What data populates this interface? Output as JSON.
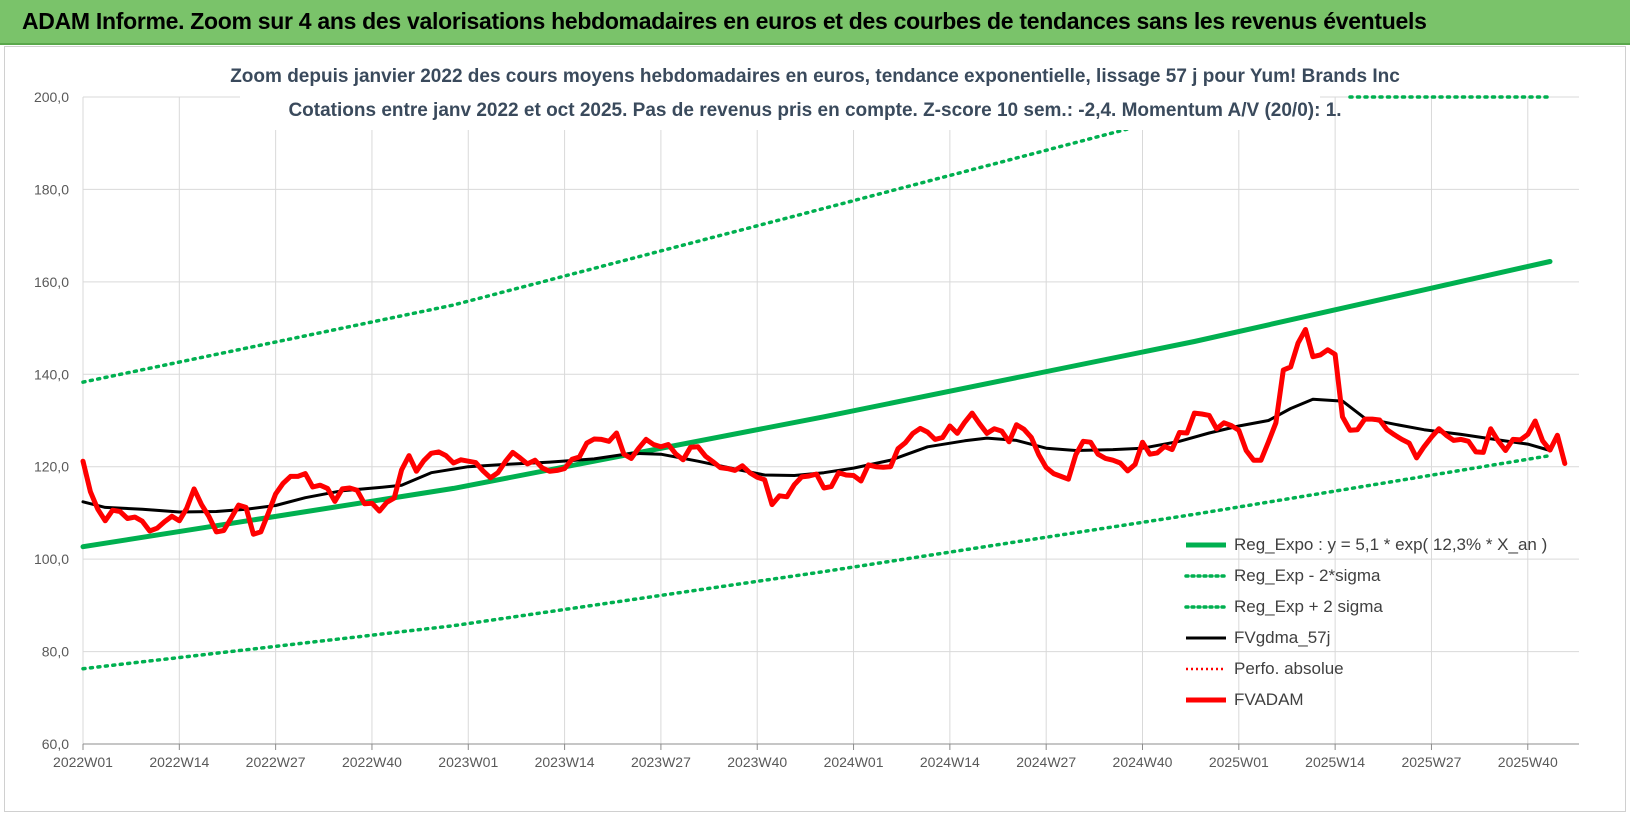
{
  "header": {
    "banner_title": "ADAM Informe. Zoom sur 4 ans des valorisations hebdomadaires en euros et des courbes de tendances sans les revenus éventuels"
  },
  "colors": {
    "banner_bg": "#7ac36a",
    "trend_green": "#00b050",
    "price_red": "#ff0000",
    "smooth_black": "#000000",
    "title_text": "#3a4a5c",
    "grid": "#d9d9d9"
  },
  "chart_data": {
    "type": "line",
    "title": "Zoom depuis janvier 2022 des cours moyens hebdomadaires en euros, tendance exponentielle, lissage 57 j pour Yum! Brands Inc",
    "subtitle": "Cotations entre janv 2022 et oct 2025. Pas de revenus pris en compte. Z-score 10 sem.: -2,4. Momentum A/V (20/0): 1.",
    "xlabel": "",
    "ylabel": "",
    "ylim": [
      60,
      200
    ],
    "yticks": [
      60,
      80,
      100,
      120,
      140,
      160,
      180,
      200
    ],
    "ytick_labels": [
      "60,0",
      "80,0",
      "100,0",
      "120,0",
      "140,0",
      "160,0",
      "180,0",
      "200,0"
    ],
    "x_week_range": [
      0,
      198
    ],
    "xticks": [
      {
        "week": 0,
        "label": "2022W01"
      },
      {
        "week": 13,
        "label": "2022W14"
      },
      {
        "week": 26,
        "label": "2022W27"
      },
      {
        "week": 39,
        "label": "2022W40"
      },
      {
        "week": 52,
        "label": "2023W01"
      },
      {
        "week": 65,
        "label": "2023W14"
      },
      {
        "week": 78,
        "label": "2023W27"
      },
      {
        "week": 91,
        "label": "2023W40"
      },
      {
        "week": 104,
        "label": "2024W01"
      },
      {
        "week": 117,
        "label": "2024W14"
      },
      {
        "week": 130,
        "label": "2024W27"
      },
      {
        "week": 143,
        "label": "2024W40"
      },
      {
        "week": 156,
        "label": "2025W01"
      },
      {
        "week": 169,
        "label": "2025W14"
      },
      {
        "week": 182,
        "label": "2025W27"
      },
      {
        "week": 195,
        "label": "2025W40"
      }
    ],
    "grid": true,
    "legend_position": "bottom-right",
    "series": [
      {
        "name": "Reg_Expo : y = 5,1 * exp( 12,3% * X_an )",
        "style": "solid-thick",
        "color": "#00b050",
        "points": [
          [
            0,
            102.7
          ],
          [
            50,
            115.3
          ],
          [
            100,
            130.8
          ],
          [
            150,
            147.1
          ],
          [
            198,
            164.4
          ]
        ]
      },
      {
        "name": "Reg_Exp - 2*sigma",
        "style": "dotted",
        "color": "#00b050",
        "points": [
          [
            0,
            76.3
          ],
          [
            50,
            85.6
          ],
          [
            100,
            97.3
          ],
          [
            150,
            109.7
          ],
          [
            198,
            122.4
          ]
        ]
      },
      {
        "name": "Reg_Exp + 2 sigma",
        "style": "dotted",
        "color": "#00b050",
        "points": [
          [
            0,
            138.3
          ],
          [
            50,
            155.0
          ],
          [
            100,
            175.9
          ],
          [
            142,
            193.5
          ]
        ],
        "cap_points": [
          [
            171,
            200
          ],
          [
            198,
            200
          ]
        ]
      },
      {
        "name": "FVgdma_57j",
        "style": "solid",
        "color": "#000000",
        "points": [
          [
            0,
            112.4
          ],
          [
            3,
            111.2
          ],
          [
            8,
            110.8
          ],
          [
            13,
            110.2
          ],
          [
            18,
            110.3
          ],
          [
            22,
            110.8
          ],
          [
            26,
            111.6
          ],
          [
            30,
            113.3
          ],
          [
            35,
            114.8
          ],
          [
            40,
            115.5
          ],
          [
            43,
            116.0
          ],
          [
            47,
            118.7
          ],
          [
            52,
            120.0
          ],
          [
            57,
            120.5
          ],
          [
            63,
            121.0
          ],
          [
            69,
            121.7
          ],
          [
            74,
            122.9
          ],
          [
            78,
            122.7
          ],
          [
            83,
            121.2
          ],
          [
            88,
            119.5
          ],
          [
            92,
            118.2
          ],
          [
            96,
            118.1
          ],
          [
            100,
            118.7
          ],
          [
            104,
            119.7
          ],
          [
            109,
            121.4
          ],
          [
            114,
            124.3
          ],
          [
            119,
            125.6
          ],
          [
            122,
            126.2
          ],
          [
            126,
            125.7
          ],
          [
            130,
            124.0
          ],
          [
            134,
            123.5
          ],
          [
            139,
            123.7
          ],
          [
            143,
            124.0
          ],
          [
            148,
            125.5
          ],
          [
            152,
            127.3
          ],
          [
            156,
            128.8
          ],
          [
            160,
            130.0
          ],
          [
            163,
            132.6
          ],
          [
            166,
            134.6
          ],
          [
            170,
            134.2
          ],
          [
            173,
            130.5
          ],
          [
            177,
            129.2
          ],
          [
            181,
            128.0
          ],
          [
            186,
            127.0
          ],
          [
            191,
            125.8
          ],
          [
            195,
            124.9
          ],
          [
            198,
            123.5
          ]
        ]
      },
      {
        "name": "Perfo. absolue",
        "style": "dotted",
        "color": "#ff0000",
        "points": []
      },
      {
        "name": "FVADAM",
        "style": "solid-thick",
        "color": "#ff0000",
        "points": [
          [
            0,
            121.2
          ],
          [
            1,
            114.6
          ],
          [
            2,
            110.8
          ],
          [
            3,
            108.3
          ],
          [
            4,
            110.6
          ],
          [
            5,
            110.3
          ],
          [
            6,
            108.8
          ],
          [
            7,
            109.1
          ],
          [
            8,
            108.2
          ],
          [
            9,
            106.1
          ],
          [
            10,
            106.7
          ],
          [
            11,
            108.1
          ],
          [
            12,
            109.3
          ],
          [
            13,
            108.3
          ],
          [
            14,
            111.0
          ],
          [
            15,
            115.2
          ],
          [
            16,
            111.8
          ],
          [
            17,
            109.2
          ],
          [
            18,
            105.9
          ],
          [
            19,
            106.2
          ],
          [
            20,
            108.9
          ],
          [
            21,
            111.7
          ],
          [
            22,
            111.2
          ],
          [
            23,
            105.4
          ],
          [
            24,
            105.9
          ],
          [
            25,
            109.9
          ],
          [
            26,
            114.1
          ],
          [
            27,
            116.4
          ],
          [
            28,
            117.9
          ],
          [
            29,
            117.9
          ],
          [
            30,
            118.5
          ],
          [
            31,
            115.6
          ],
          [
            32,
            116.0
          ],
          [
            33,
            115.3
          ],
          [
            34,
            112.5
          ],
          [
            35,
            115.2
          ],
          [
            36,
            115.4
          ],
          [
            37,
            114.9
          ],
          [
            38,
            112.0
          ],
          [
            39,
            112.1
          ],
          [
            40,
            110.4
          ],
          [
            41,
            112.3
          ],
          [
            42,
            113.2
          ],
          [
            43,
            119.3
          ],
          [
            44,
            122.4
          ],
          [
            45,
            119.0
          ],
          [
            46,
            121.3
          ],
          [
            47,
            122.9
          ],
          [
            48,
            123.2
          ],
          [
            49,
            122.4
          ],
          [
            50,
            120.8
          ],
          [
            51,
            121.5
          ],
          [
            52,
            121.2
          ],
          [
            53,
            120.9
          ],
          [
            54,
            119.1
          ],
          [
            55,
            117.6
          ],
          [
            56,
            118.7
          ],
          [
            57,
            121.1
          ],
          [
            58,
            123.1
          ],
          [
            59,
            121.9
          ],
          [
            60,
            120.6
          ],
          [
            61,
            121.4
          ],
          [
            62,
            119.7
          ],
          [
            63,
            119.0
          ],
          [
            64,
            119.2
          ],
          [
            65,
            119.6
          ],
          [
            66,
            121.6
          ],
          [
            67,
            122.1
          ],
          [
            68,
            125.1
          ],
          [
            69,
            126.0
          ],
          [
            70,
            125.9
          ],
          [
            71,
            125.5
          ],
          [
            72,
            127.3
          ],
          [
            73,
            122.7
          ],
          [
            74,
            121.8
          ],
          [
            75,
            124.0
          ],
          [
            76,
            125.9
          ],
          [
            77,
            124.8
          ],
          [
            78,
            124.3
          ],
          [
            79,
            124.8
          ],
          [
            80,
            122.8
          ],
          [
            81,
            121.5
          ],
          [
            82,
            124.2
          ],
          [
            83,
            124.3
          ],
          [
            84,
            122.3
          ],
          [
            85,
            121.1
          ],
          [
            86,
            119.8
          ],
          [
            87,
            119.6
          ],
          [
            88,
            119.2
          ],
          [
            89,
            120.2
          ],
          [
            90,
            118.7
          ],
          [
            91,
            117.7
          ],
          [
            92,
            117.2
          ],
          [
            93,
            111.8
          ],
          [
            94,
            113.7
          ],
          [
            95,
            113.5
          ],
          [
            96,
            116.1
          ],
          [
            97,
            117.8
          ],
          [
            98,
            118.0
          ],
          [
            99,
            118.4
          ],
          [
            100,
            115.4
          ],
          [
            101,
            115.7
          ],
          [
            102,
            118.7
          ],
          [
            103,
            118.2
          ],
          [
            104,
            118.1
          ],
          [
            105,
            116.9
          ],
          [
            106,
            120.4
          ],
          [
            107,
            120.0
          ],
          [
            108,
            119.9
          ],
          [
            109,
            120.0
          ],
          [
            110,
            123.9
          ],
          [
            111,
            125.2
          ],
          [
            112,
            127.2
          ],
          [
            113,
            128.3
          ],
          [
            114,
            127.5
          ],
          [
            115,
            125.9
          ],
          [
            116,
            126.3
          ],
          [
            117,
            128.8
          ],
          [
            118,
            127.2
          ],
          [
            119,
            129.6
          ],
          [
            120,
            131.6
          ],
          [
            121,
            129.3
          ],
          [
            122,
            127.2
          ],
          [
            123,
            128.2
          ],
          [
            124,
            127.7
          ],
          [
            125,
            125.4
          ],
          [
            126,
            129.1
          ],
          [
            127,
            128.1
          ],
          [
            128,
            126.3
          ],
          [
            129,
            122.6
          ],
          [
            130,
            119.8
          ],
          [
            131,
            118.5
          ],
          [
            132,
            117.9
          ],
          [
            133,
            117.3
          ],
          [
            134,
            122.6
          ],
          [
            135,
            125.5
          ],
          [
            136,
            125.3
          ],
          [
            137,
            122.7
          ],
          [
            138,
            121.8
          ],
          [
            139,
            121.4
          ],
          [
            140,
            120.8
          ],
          [
            141,
            119.1
          ],
          [
            142,
            120.5
          ],
          [
            143,
            125.3
          ],
          [
            144,
            122.7
          ],
          [
            145,
            123.0
          ],
          [
            146,
            124.4
          ],
          [
            147,
            123.7
          ],
          [
            148,
            127.4
          ],
          [
            149,
            127.3
          ],
          [
            150,
            131.6
          ],
          [
            151,
            131.4
          ],
          [
            152,
            131.1
          ],
          [
            153,
            128.2
          ],
          [
            154,
            129.5
          ],
          [
            155,
            128.9
          ],
          [
            156,
            127.9
          ],
          [
            157,
            123.5
          ],
          [
            158,
            121.4
          ],
          [
            159,
            121.4
          ],
          [
            160,
            125.4
          ],
          [
            161,
            129.5
          ],
          [
            162,
            140.9
          ],
          [
            163,
            141.6
          ],
          [
            164,
            146.8
          ],
          [
            165,
            149.7
          ],
          [
            166,
            143.8
          ],
          [
            167,
            144.2
          ],
          [
            168,
            145.3
          ],
          [
            169,
            144.3
          ],
          [
            170,
            130.8
          ],
          [
            171,
            127.9
          ],
          [
            172,
            128.0
          ],
          [
            173,
            130.3
          ],
          [
            174,
            130.3
          ],
          [
            175,
            130.1
          ],
          [
            176,
            128.0
          ],
          [
            177,
            126.9
          ],
          [
            178,
            125.9
          ],
          [
            179,
            125.1
          ],
          [
            180,
            121.9
          ],
          [
            181,
            124.3
          ],
          [
            182,
            126.4
          ],
          [
            183,
            128.2
          ],
          [
            184,
            126.8
          ],
          [
            185,
            125.7
          ],
          [
            186,
            125.9
          ],
          [
            187,
            125.5
          ],
          [
            188,
            123.2
          ],
          [
            189,
            123.1
          ],
          [
            190,
            128.2
          ],
          [
            191,
            125.6
          ],
          [
            192,
            123.5
          ],
          [
            193,
            125.9
          ],
          [
            194,
            125.8
          ],
          [
            195,
            127.0
          ],
          [
            196,
            129.9
          ],
          [
            197,
            125.6
          ],
          [
            198,
            123.6
          ],
          [
            199,
            126.8
          ],
          [
            200,
            120.7
          ]
        ]
      }
    ]
  }
}
